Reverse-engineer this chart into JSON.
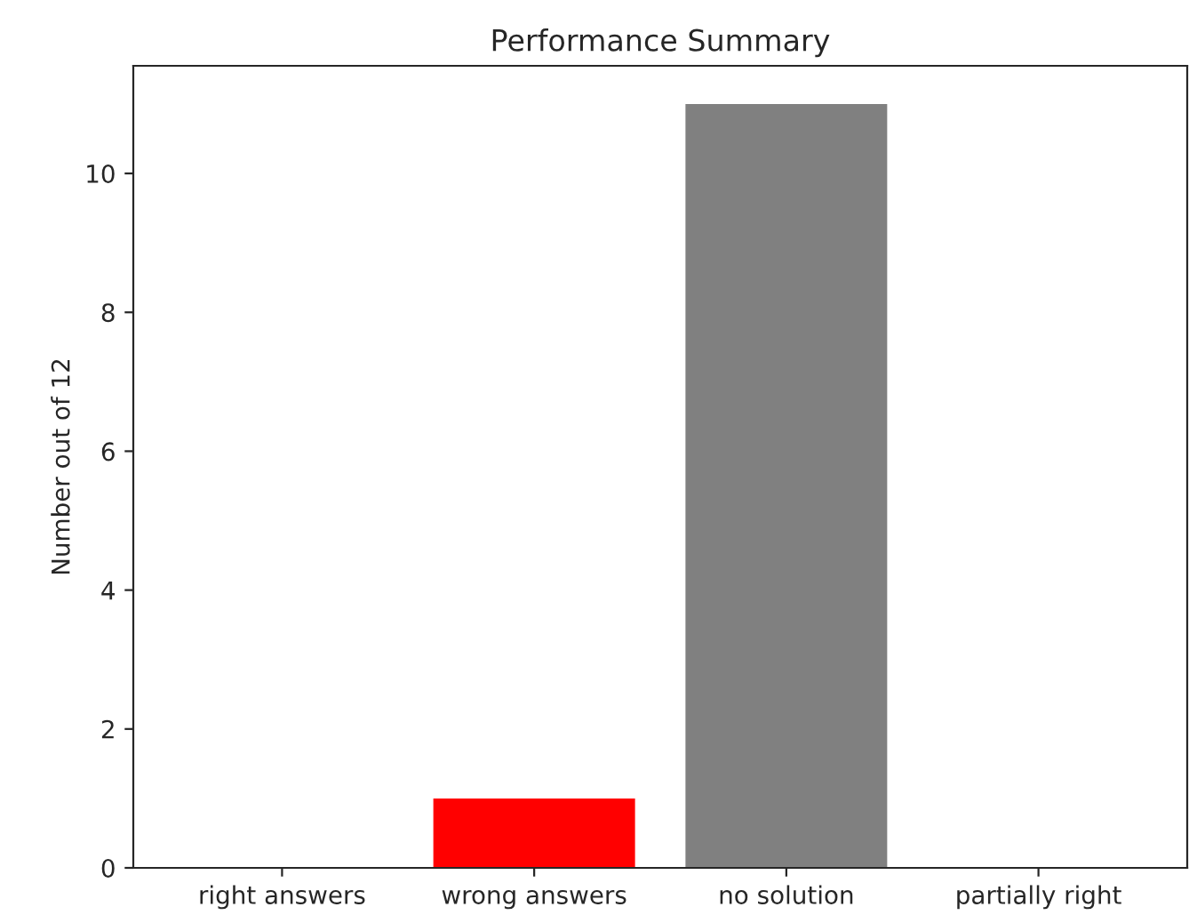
{
  "chart_data": {
    "type": "bar",
    "title": "Performance Summary",
    "ylabel": "Number out of 12",
    "categories": [
      "right answers",
      "wrong answers",
      "no solution",
      "partially right"
    ],
    "values": [
      0,
      1,
      11,
      0
    ],
    "colors": [
      null,
      "#ff0000",
      "#808080",
      null
    ],
    "ylim": [
      0,
      11.55
    ],
    "yticks": [
      0,
      2,
      4,
      6,
      8,
      10
    ],
    "grid": false,
    "legend": false
  }
}
